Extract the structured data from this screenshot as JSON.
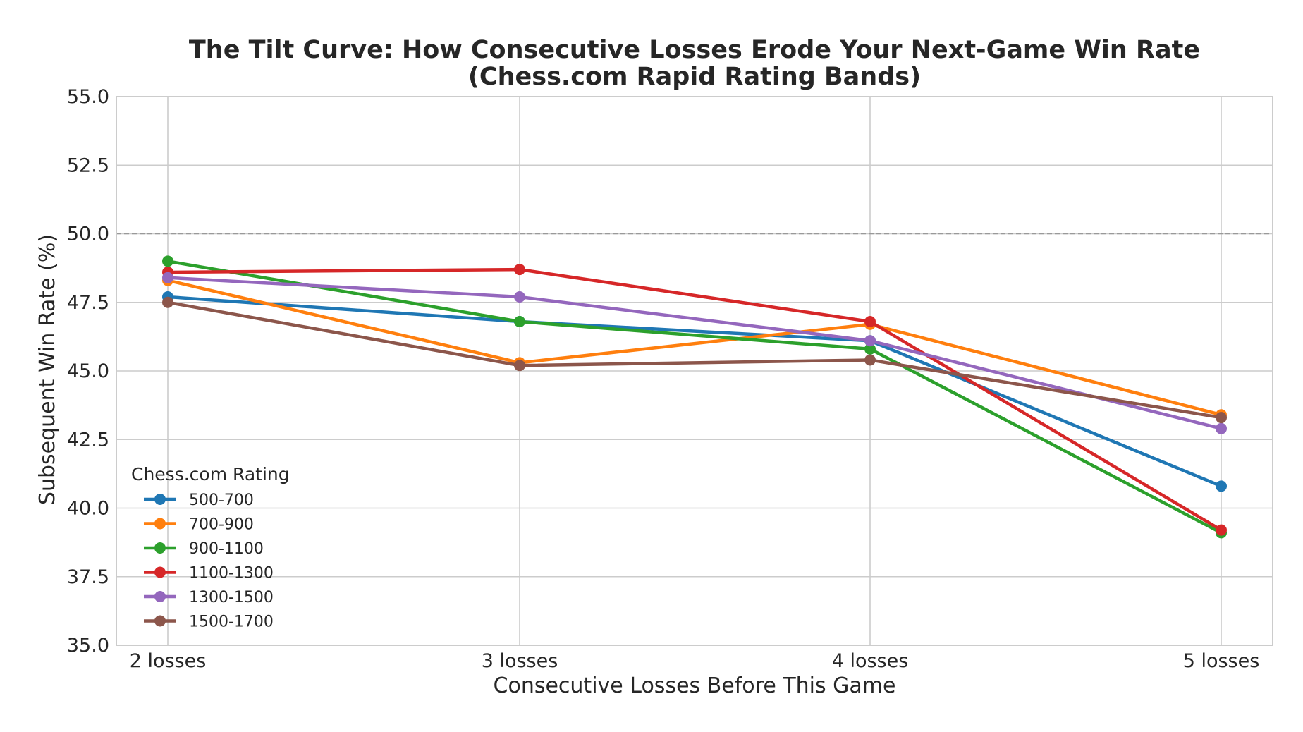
{
  "chart_data": {
    "type": "line",
    "title": "The Tilt Curve: How Consecutive Losses Erode Your Next-Game Win Rate",
    "subtitle": "(Chess.com Rapid Rating Bands)",
    "xlabel": "Consecutive Losses Before This Game",
    "ylabel": "Subsequent Win Rate (%)",
    "categories": [
      "2 losses",
      "3 losses",
      "4 losses",
      "5 losses"
    ],
    "ylim": [
      35.0,
      55.0
    ],
    "yticks": [
      "35.0",
      "37.5",
      "40.0",
      "42.5",
      "45.0",
      "47.5",
      "50.0",
      "52.5",
      "55.0"
    ],
    "reference_line": {
      "y": 50.0,
      "style": "dashed",
      "color": "#999999"
    },
    "grid": true,
    "legend": {
      "title": "Chess.com Rating",
      "position": "lower-left"
    },
    "series": [
      {
        "name": "500-700",
        "color": "#1f77b4",
        "values": [
          47.7,
          46.8,
          46.1,
          40.8
        ]
      },
      {
        "name": "700-900",
        "color": "#ff7f0e",
        "values": [
          48.3,
          45.3,
          46.7,
          43.4
        ]
      },
      {
        "name": "900-1100",
        "color": "#2ca02c",
        "values": [
          49.0,
          46.8,
          45.8,
          39.1
        ]
      },
      {
        "name": "1100-1300",
        "color": "#d62728",
        "values": [
          48.6,
          48.7,
          46.8,
          39.2
        ]
      },
      {
        "name": "1300-1500",
        "color": "#9467bd",
        "values": [
          48.4,
          47.7,
          46.1,
          42.9
        ]
      },
      {
        "name": "1500-1700",
        "color": "#8c564b",
        "values": [
          47.5,
          45.2,
          45.4,
          43.3
        ]
      }
    ]
  }
}
